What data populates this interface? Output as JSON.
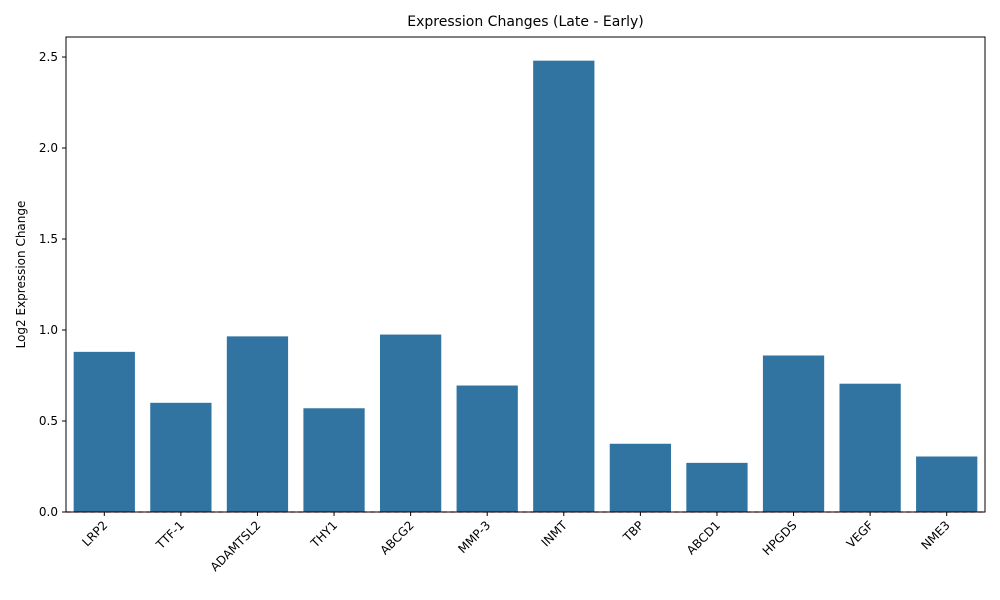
{
  "chart_data": {
    "type": "bar",
    "title": "Expression Changes (Late - Early)",
    "xlabel": "",
    "ylabel": "Log2 Expression Change",
    "categories": [
      "LRP2",
      "TTF-1",
      "ADAMTSL2",
      "THY1",
      "ABCG2",
      "MMP-3",
      "INMT",
      "TBP",
      "ABCD1",
      "HPGDS",
      "VEGF",
      "NME3"
    ],
    "values": [
      0.88,
      0.6,
      0.965,
      0.57,
      0.975,
      0.695,
      2.48,
      0.375,
      0.27,
      0.86,
      0.705,
      0.305
    ],
    "ylim": [
      0,
      2.61
    ],
    "yticks": [
      0.0,
      0.5,
      1.0,
      1.5,
      2.0,
      2.5
    ],
    "ytick_labels": [
      "0.0",
      "0.5",
      "1.0",
      "1.5",
      "2.0",
      "2.5"
    ],
    "bar_color": "#3274a1",
    "reference_line": {
      "y": 0,
      "color": "#d62728",
      "style": "dashed"
    },
    "grid": false,
    "legend": "none"
  }
}
